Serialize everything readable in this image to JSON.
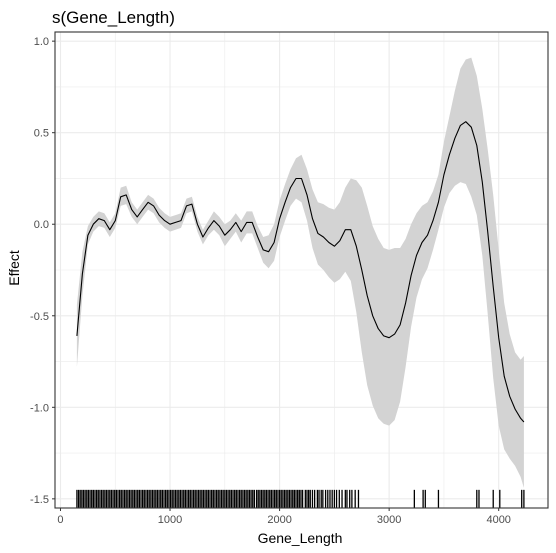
{
  "chart_data": {
    "type": "line",
    "title": "s(Gene_Length)",
    "xlabel": "Gene_Length",
    "ylabel": "Effect",
    "xlim": [
      -50,
      4450
    ],
    "ylim": [
      -1.55,
      1.05
    ],
    "x_ticks": [
      0,
      1000,
      2000,
      3000,
      4000
    ],
    "y_ticks": [
      -1.5,
      -1.0,
      -0.5,
      0.0,
      0.5,
      1.0
    ],
    "x_tick_labels": [
      "0",
      "1000",
      "2000",
      "3000",
      "4000"
    ],
    "y_tick_labels": [
      "-1.5",
      "-1.0",
      "-0.5",
      "0.0",
      "0.5",
      "1.0"
    ],
    "grid": true,
    "colors": {
      "line": "#000000",
      "band": "#d3d3d3",
      "grid": "#ebebeb",
      "border": "#333333",
      "rug": "#000000"
    },
    "series": [
      {
        "x": [
          150,
          200,
          250,
          300,
          350,
          400,
          450,
          500,
          550,
          600,
          650,
          700,
          750,
          800,
          850,
          900,
          950,
          1000,
          1050,
          1100,
          1150,
          1200,
          1250,
          1300,
          1350,
          1400,
          1450,
          1500,
          1550,
          1600,
          1650,
          1700,
          1750,
          1800,
          1850,
          1900,
          1950,
          2000,
          2050,
          2100,
          2150,
          2200,
          2250,
          2300,
          2350,
          2400,
          2450,
          2500,
          2550,
          2600,
          2650,
          2700,
          2750,
          2800,
          2850,
          2900,
          2950,
          3000,
          3050,
          3100,
          3150,
          3200,
          3250,
          3300,
          3350,
          3400,
          3450,
          3500,
          3550,
          3600,
          3650,
          3700,
          3750,
          3800,
          3850,
          3900,
          3950,
          4000,
          4050,
          4100,
          4150,
          4200,
          4230
        ],
        "y": [
          -0.61,
          -0.27,
          -0.06,
          0.0,
          0.03,
          0.02,
          -0.03,
          0.02,
          0.15,
          0.16,
          0.08,
          0.04,
          0.08,
          0.12,
          0.1,
          0.05,
          0.02,
          0.0,
          0.01,
          0.02,
          0.1,
          0.11,
          0.0,
          -0.07,
          -0.02,
          0.02,
          -0.01,
          -0.06,
          -0.03,
          0.01,
          -0.04,
          0.01,
          0.01,
          -0.07,
          -0.14,
          -0.15,
          -0.1,
          0.03,
          0.12,
          0.2,
          0.25,
          0.25,
          0.16,
          0.03,
          -0.05,
          -0.07,
          -0.1,
          -0.12,
          -0.09,
          -0.03,
          -0.03,
          -0.12,
          -0.25,
          -0.39,
          -0.5,
          -0.57,
          -0.61,
          -0.62,
          -0.6,
          -0.55,
          -0.43,
          -0.28,
          -0.17,
          -0.1,
          -0.06,
          0.02,
          0.12,
          0.27,
          0.38,
          0.47,
          0.54,
          0.56,
          0.53,
          0.43,
          0.23,
          -0.04,
          -0.34,
          -0.62,
          -0.83,
          -0.94,
          -1.01,
          -1.06,
          -1.08
        ],
        "lower": [
          -0.78,
          -0.39,
          -0.11,
          -0.04,
          -0.01,
          -0.02,
          -0.07,
          -0.02,
          0.1,
          0.11,
          0.04,
          0.0,
          0.04,
          0.08,
          0.06,
          0.01,
          -0.02,
          -0.04,
          -0.03,
          -0.02,
          0.06,
          0.07,
          -0.04,
          -0.11,
          -0.06,
          -0.03,
          -0.06,
          -0.12,
          -0.08,
          -0.04,
          -0.1,
          -0.05,
          -0.05,
          -0.13,
          -0.21,
          -0.24,
          -0.2,
          -0.07,
          0.02,
          0.1,
          0.14,
          0.12,
          0.02,
          -0.13,
          -0.22,
          -0.25,
          -0.29,
          -0.32,
          -0.3,
          -0.26,
          -0.31,
          -0.48,
          -0.7,
          -0.88,
          -0.99,
          -1.06,
          -1.09,
          -1.1,
          -1.07,
          -0.97,
          -0.78,
          -0.56,
          -0.4,
          -0.3,
          -0.24,
          -0.14,
          -0.03,
          0.09,
          0.17,
          0.21,
          0.23,
          0.22,
          0.15,
          0.05,
          -0.17,
          -0.49,
          -0.84,
          -1.1,
          -1.23,
          -1.28,
          -1.32,
          -1.38,
          -1.44
        ],
        "upper": [
          -0.44,
          -0.15,
          -0.01,
          0.04,
          0.07,
          0.06,
          0.01,
          0.06,
          0.2,
          0.21,
          0.12,
          0.08,
          0.12,
          0.16,
          0.14,
          0.09,
          0.06,
          0.04,
          0.05,
          0.06,
          0.14,
          0.15,
          0.04,
          -0.03,
          0.02,
          0.07,
          0.04,
          -0.0,
          0.02,
          0.06,
          0.02,
          0.07,
          0.07,
          -0.01,
          -0.07,
          -0.06,
          0.0,
          0.13,
          0.22,
          0.3,
          0.36,
          0.38,
          0.3,
          0.19,
          0.12,
          0.11,
          0.09,
          0.08,
          0.12,
          0.2,
          0.25,
          0.24,
          0.2,
          0.1,
          -0.01,
          -0.08,
          -0.13,
          -0.14,
          -0.13,
          -0.13,
          -0.08,
          0.0,
          0.06,
          0.1,
          0.12,
          0.18,
          0.27,
          0.45,
          0.59,
          0.73,
          0.85,
          0.9,
          0.91,
          0.81,
          0.63,
          0.41,
          0.16,
          -0.14,
          -0.43,
          -0.6,
          -0.7,
          -0.74,
          -0.72
        ]
      }
    ],
    "rug": [
      150,
      165,
      180,
      195,
      210,
      225,
      240,
      255,
      270,
      285,
      300,
      315,
      330,
      345,
      360,
      375,
      390,
      405,
      420,
      435,
      450,
      465,
      480,
      495,
      510,
      525,
      540,
      555,
      570,
      585,
      600,
      615,
      630,
      645,
      660,
      675,
      690,
      705,
      720,
      735,
      750,
      765,
      780,
      795,
      810,
      825,
      840,
      855,
      870,
      885,
      900,
      915,
      930,
      945,
      960,
      975,
      990,
      1005,
      1020,
      1035,
      1050,
      1065,
      1080,
      1095,
      1110,
      1125,
      1140,
      1155,
      1170,
      1185,
      1200,
      1215,
      1230,
      1245,
      1260,
      1275,
      1290,
      1305,
      1320,
      1335,
      1350,
      1365,
      1380,
      1395,
      1410,
      1425,
      1440,
      1455,
      1470,
      1485,
      1500,
      1515,
      1530,
      1545,
      1560,
      1575,
      1590,
      1605,
      1620,
      1635,
      1650,
      1665,
      1680,
      1695,
      1710,
      1725,
      1740,
      1755,
      1770,
      1790,
      1805,
      1820,
      1835,
      1850,
      1865,
      1880,
      1895,
      1910,
      1925,
      1940,
      1955,
      1970,
      1985,
      2000,
      2015,
      2030,
      2045,
      2060,
      2075,
      2090,
      2105,
      2120,
      2135,
      2150,
      2165,
      2180,
      2195,
      2210,
      2235,
      2250,
      2265,
      2280,
      2300,
      2320,
      2345,
      2360,
      2380,
      2395,
      2420,
      2440,
      2460,
      2480,
      2500,
      2520,
      2545,
      2570,
      2600,
      2615,
      2640,
      2660,
      2690,
      2720,
      3230,
      3310,
      3330,
      3450,
      3800,
      3820,
      3950,
      4010,
      4210,
      4230
    ]
  }
}
